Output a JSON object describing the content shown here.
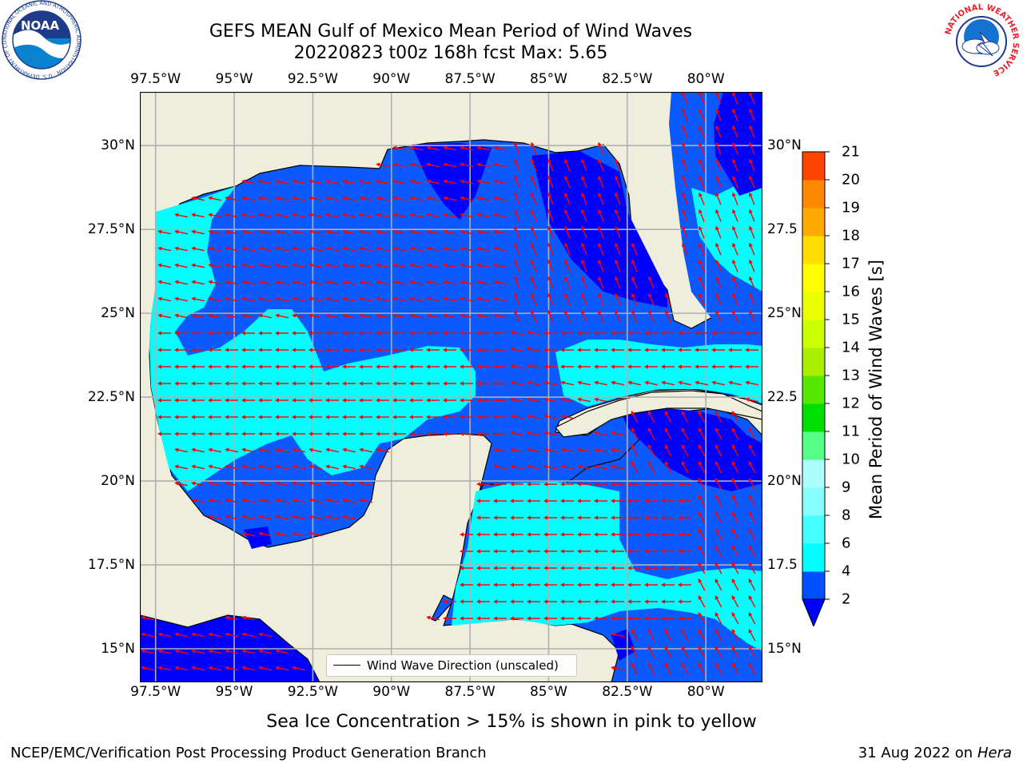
{
  "header": {
    "title_line1": "GEFS MEAN Gulf of Mexico Mean Period of Wind Waves",
    "title_line2": "20220823 t00z 168h fcst   Max: 5.65"
  },
  "map": {
    "lon_labels": [
      "97.5°W",
      "95°W",
      "92.5°W",
      "90°W",
      "87.5°W",
      "85°W",
      "82.5°W",
      "80°W"
    ],
    "lon_values": [
      -97.5,
      -95,
      -92.5,
      -90,
      -87.5,
      -85,
      -82.5,
      -80
    ],
    "lat_labels_left": [
      "30°N",
      "27.5°N",
      "25°N",
      "22.5°N",
      "20°N",
      "17.5°N",
      "15°N"
    ],
    "lat_labels_right": [
      "30°N",
      "27.5",
      "25°N",
      "22.5",
      "20°N",
      "17.5",
      "15°N"
    ],
    "lat_values": [
      30,
      27.5,
      25,
      22.5,
      20,
      17.5,
      15
    ],
    "extent": {
      "lon_min": -98,
      "lon_max": -78.2,
      "lat_min": 14,
      "lat_max": 31.6
    },
    "land_color": "#efeedc",
    "arrow_color": "#ff0000"
  },
  "legend": {
    "label": "Wind Wave Direction (unscaled)"
  },
  "colorbar": {
    "label": "Mean Period of Wind Waves [s]",
    "ticks": [
      "2",
      "4",
      "6",
      "8",
      "9",
      "10",
      "11",
      "12",
      "13",
      "14",
      "15",
      "16",
      "17",
      "18",
      "19",
      "20",
      "21"
    ],
    "colors": [
      "#0050ff",
      "#00ffff",
      "#44ffff",
      "#88ffff",
      "#aaffff",
      "#55ff88",
      "#00e000",
      "#55e800",
      "#aaee00",
      "#ccff00",
      "#eeff00",
      "#ffff00",
      "#ffdd00",
      "#ffaa00",
      "#ff8800",
      "#ff4400",
      "#ff0000"
    ],
    "under_color": "#0000ff"
  },
  "caption": "Sea Ice Concentration > 15% is shown in pink to yellow",
  "footer": {
    "left": "NCEP/EMC/Verification Post Processing Product Generation Branch",
    "date": "31 Aug 2022 on",
    "machine": "Hera"
  },
  "logos": {
    "left_icon": "noaa-logo",
    "right_icon": "nws-logo",
    "noaa_text": "NOAA",
    "noaa_ring": "NATIONAL OCEANIC AND ATMOSPHERIC ADMINISTRATION · U.S. DEPARTMENT OF COMMERCE",
    "nws_ring": "NATIONAL WEATHER SERVICE"
  }
}
